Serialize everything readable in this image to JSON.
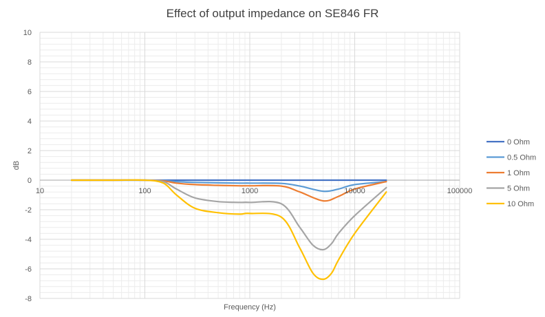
{
  "chart_data": {
    "type": "line",
    "title": "Effect of output impedance on SE846 FR",
    "xlabel": "Frequency (Hz)",
    "ylabel": "dB",
    "xscale": "log",
    "xlim": [
      10,
      100000
    ],
    "ylim": [
      -8,
      10
    ],
    "xticks": [
      {
        "value": 10,
        "label": "10"
      },
      {
        "value": 100,
        "label": "100"
      },
      {
        "value": 1000,
        "label": "1000"
      },
      {
        "value": 10000,
        "label": "10000"
      },
      {
        "value": 100000,
        "label": "100000"
      }
    ],
    "yticks": [
      {
        "value": 10,
        "label": "10"
      },
      {
        "value": 8,
        "label": "8"
      },
      {
        "value": 6,
        "label": "6"
      },
      {
        "value": 4,
        "label": "4"
      },
      {
        "value": 2,
        "label": "2"
      },
      {
        "value": 0,
        "label": "0"
      },
      {
        "value": -2,
        "label": "-2"
      },
      {
        "value": -4,
        "label": "-4"
      },
      {
        "value": -6,
        "label": "-6"
      },
      {
        "value": -8,
        "label": "-8"
      }
    ],
    "grid": true,
    "legend_position": "right",
    "series": [
      {
        "name": "0 Ohm",
        "color": "#4472C4",
        "x": [
          20,
          50,
          100,
          150,
          200,
          300,
          500,
          1000,
          2000,
          3000,
          5000,
          7000,
          10000,
          20000
        ],
        "y": [
          0,
          0,
          0,
          0,
          0,
          0,
          0,
          0,
          0,
          0,
          0,
          0,
          0,
          0
        ]
      },
      {
        "name": "0.5 Ohm",
        "color": "#5B9BD5",
        "x": [
          20,
          50,
          100,
          150,
          200,
          300,
          500,
          800,
          1000,
          2000,
          3000,
          5000,
          7000,
          10000,
          20000
        ],
        "y": [
          0,
          0,
          0,
          -0.03,
          -0.1,
          -0.15,
          -0.18,
          -0.2,
          -0.2,
          -0.22,
          -0.4,
          -0.75,
          -0.6,
          -0.3,
          -0.1
        ]
      },
      {
        "name": "1 Ohm",
        "color": "#ED7D31",
        "x": [
          20,
          50,
          100,
          150,
          200,
          300,
          500,
          800,
          1000,
          2000,
          3000,
          5000,
          7000,
          10000,
          20000
        ],
        "y": [
          0,
          0,
          0,
          -0.05,
          -0.2,
          -0.3,
          -0.35,
          -0.38,
          -0.38,
          -0.4,
          -0.8,
          -1.4,
          -1.1,
          -0.6,
          -0.1
        ]
      },
      {
        "name": "5 Ohm",
        "color": "#A5A5A5",
        "x": [
          20,
          50,
          100,
          150,
          200,
          300,
          500,
          800,
          1000,
          2000,
          3000,
          4000,
          5000,
          6000,
          7000,
          10000,
          20000
        ],
        "y": [
          0,
          0,
          0,
          -0.1,
          -0.6,
          -1.2,
          -1.45,
          -1.5,
          -1.5,
          -1.6,
          -3.2,
          -4.4,
          -4.7,
          -4.3,
          -3.6,
          -2.4,
          -0.5
        ]
      },
      {
        "name": "10 Ohm",
        "color": "#FFC000",
        "x": [
          20,
          50,
          100,
          150,
          200,
          300,
          500,
          800,
          1000,
          2000,
          3000,
          4000,
          5000,
          6000,
          7000,
          10000,
          20000
        ],
        "y": [
          0,
          0,
          0,
          -0.2,
          -1.0,
          -1.9,
          -2.2,
          -2.3,
          -2.25,
          -2.5,
          -4.6,
          -6.3,
          -6.7,
          -6.3,
          -5.4,
          -3.6,
          -0.8
        ]
      }
    ]
  }
}
